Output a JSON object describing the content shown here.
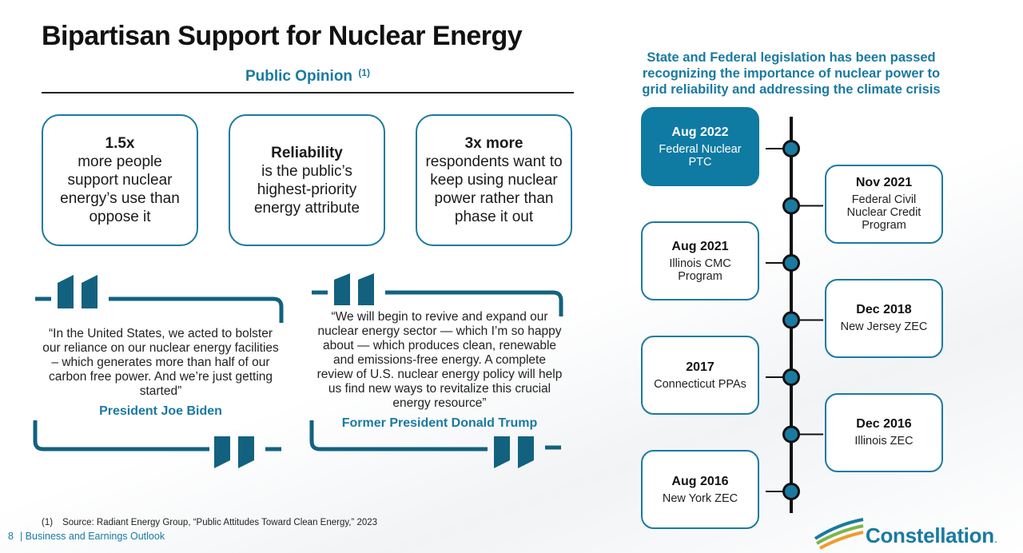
{
  "title": "Bipartisan Support for Nuclear Energy",
  "public_opinion": {
    "heading": "Public Opinion",
    "footnote_ref": "(1)",
    "cards": [
      {
        "highlight": "1.5x",
        "text": "more people support nuclear energy’s use than oppose it"
      },
      {
        "highlight": "Reliability",
        "text": "is the public’s highest-priority energy attribute"
      },
      {
        "highlight": "3x more",
        "text": "respondents want to keep using nuclear power rather than phase it out"
      }
    ]
  },
  "quotes": [
    {
      "text": "“In the United States, we acted to bolster our reliance on our nuclear energy facilities – which generates more than half of our carbon free power. And we’re just getting started”",
      "attribution": "President Joe Biden"
    },
    {
      "text": "“We will begin to revive and expand our nuclear energy sector — which I’m so happy about — which produces clean, renewable and emissions-free energy. A complete review of U.S. nuclear energy policy will help us find new ways to revitalize this crucial energy resource”",
      "attribution": "Former President Donald Trump"
    }
  ],
  "legislation": {
    "heading": "State and Federal legislation has been passed recognizing the importance of nuclear power to grid reliability and addressing the climate crisis",
    "events": [
      {
        "date": "Aug 2022",
        "label": "Federal Nuclear PTC",
        "side": "left",
        "highlighted": true
      },
      {
        "date": "Nov 2021",
        "label": "Federal Civil Nuclear Credit Program",
        "side": "right",
        "highlighted": false
      },
      {
        "date": "Aug 2021",
        "label": "Illinois CMC Program",
        "side": "left",
        "highlighted": false
      },
      {
        "date": "Dec 2018",
        "label": "New Jersey ZEC",
        "side": "right",
        "highlighted": false
      },
      {
        "date": "2017",
        "label": "Connecticut PPAs",
        "side": "left",
        "highlighted": false
      },
      {
        "date": "Dec 2016",
        "label": "Illinois ZEC",
        "side": "right",
        "highlighted": false
      },
      {
        "date": "Aug 2016",
        "label": "New York ZEC",
        "side": "left",
        "highlighted": false
      }
    ]
  },
  "footnote": {
    "number": "(1)",
    "text": "Source: Radiant Energy Group, “Public Attitudes Toward Clean Energy,” 2023"
  },
  "footer": {
    "page_number": "8",
    "label": "| Business and Earnings Outlook"
  },
  "brand": {
    "name": "Constellation",
    "mark": ".",
    "colors": {
      "primary": "#1a7aa0",
      "active_card": "#0f7aa2",
      "logo_green": "#7ab648",
      "logo_orange": "#f29a2e",
      "logo_blue": "#1a7aa0"
    }
  },
  "icons": [
    "open-quote-icon",
    "close-quote-icon",
    "timeline-node-icon",
    "constellation-logo-icon"
  ]
}
